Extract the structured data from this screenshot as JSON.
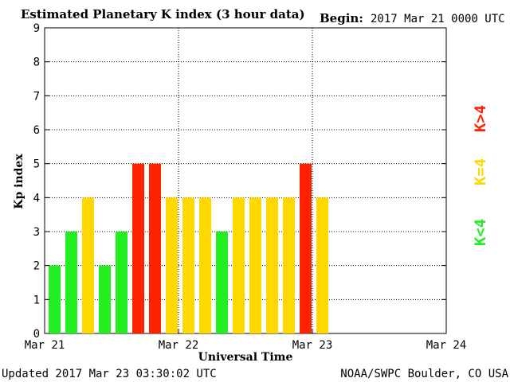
{
  "header": {
    "title": "Estimated Planetary K index (3 hour data)",
    "begin_label": "Begin:",
    "begin_value": "2017 Mar 21 0000 UTC"
  },
  "footer": {
    "updated": "Updated 2017 Mar 23 03:30:02 UTC",
    "source": "NOAA/SWPC Boulder, CO USA"
  },
  "legend": {
    "high": "K>4",
    "mid": "K=4",
    "low": "K<4"
  },
  "colors": {
    "low": "#22ee22",
    "mid": "#ffd800",
    "high": "#ff2200"
  },
  "chart_data": {
    "type": "bar",
    "title": "Estimated Planetary K index (3 hour data)",
    "xlabel": "Universal Time",
    "ylabel": "Kp index",
    "ylim": [
      0,
      9
    ],
    "yticks": [
      "0",
      "1",
      "2",
      "3",
      "4",
      "5",
      "6",
      "7",
      "8",
      "9"
    ],
    "xticks": [
      "Mar 21",
      "Mar 22",
      "Mar 23",
      "Mar 24"
    ],
    "grid": true,
    "bars_per_day": 8,
    "values": [
      2,
      3,
      4,
      2,
      3,
      5,
      5,
      4,
      4,
      4,
      3,
      4,
      4,
      4,
      4,
      5,
      4
    ]
  }
}
